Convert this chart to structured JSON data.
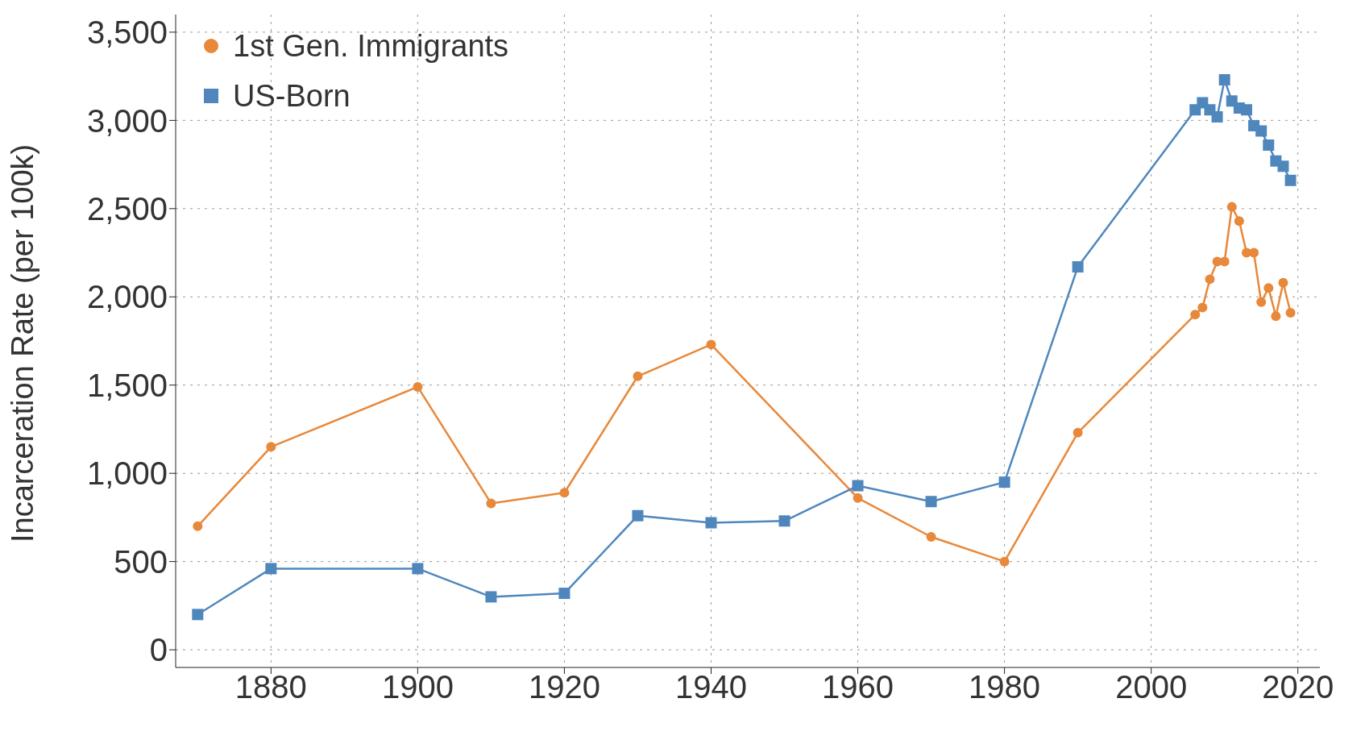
{
  "chart_data": {
    "type": "line",
    "ylabel": "Incarceration Rate (per 100k)",
    "xlim": [
      1867,
      2023
    ],
    "xticks": [
      1880,
      1900,
      1920,
      1940,
      1960,
      1980,
      2000,
      2020
    ],
    "ylim": [
      -100,
      3600
    ],
    "yticks": [
      {
        "value": 0,
        "label": "0"
      },
      {
        "value": 500,
        "label": "500"
      },
      {
        "value": 1000,
        "label": "1,000"
      },
      {
        "value": 1500,
        "label": "1,500"
      },
      {
        "value": 2000,
        "label": "2,000"
      },
      {
        "value": 2500,
        "label": "2,500"
      },
      {
        "value": 3000,
        "label": "3,000"
      },
      {
        "value": 3500,
        "label": "3,500"
      }
    ],
    "grid": true,
    "legend": "top left",
    "line_style": "solid",
    "series": [
      {
        "name": "1st Gen. Immigrants",
        "color": "#e8883a",
        "marker": "circle",
        "x": [
          1870,
          1880,
          1900,
          1910,
          1920,
          1930,
          1940,
          1960,
          1970,
          1980,
          1990,
          2006,
          2007,
          2008,
          2009,
          2010,
          2011,
          2012,
          2013,
          2014,
          2015,
          2016,
          2017,
          2018,
          2019
        ],
        "values": [
          700,
          1150,
          1490,
          830,
          890,
          1550,
          1730,
          860,
          640,
          500,
          1230,
          1900,
          1940,
          2100,
          2200,
          2200,
          2510,
          2430,
          2250,
          2250,
          1970,
          2050,
          1890,
          2080,
          1910
        ]
      },
      {
        "name": "US-Born",
        "color": "#4f87bd",
        "marker": "square",
        "x": [
          1870,
          1880,
          1900,
          1910,
          1920,
          1930,
          1940,
          1950,
          1960,
          1970,
          1980,
          1990,
          2006,
          2007,
          2008,
          2009,
          2010,
          2011,
          2012,
          2013,
          2014,
          2015,
          2016,
          2017,
          2018,
          2019
        ],
        "values": [
          200,
          460,
          460,
          300,
          320,
          760,
          720,
          730,
          930,
          840,
          950,
          2170,
          3060,
          3100,
          3060,
          3020,
          3230,
          3110,
          3070,
          3060,
          2970,
          2940,
          2860,
          2770,
          2740,
          2660
        ]
      }
    ]
  }
}
